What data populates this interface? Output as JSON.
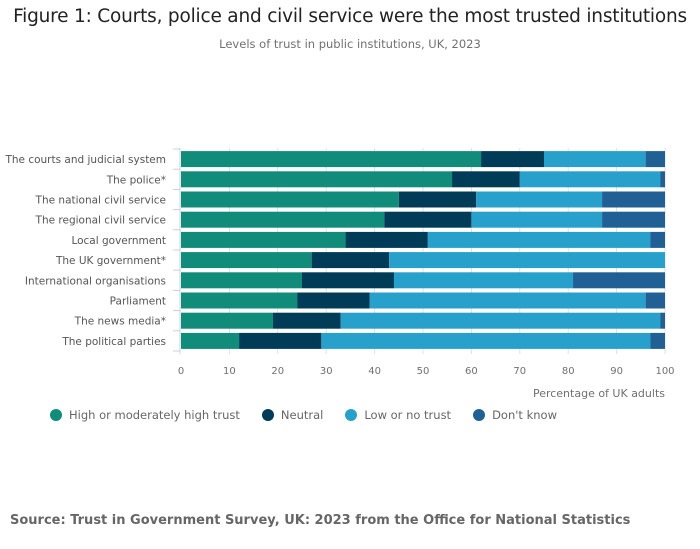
{
  "title": "Figure 1: Courts, police and civil service were the most trusted institutions",
  "subtitle": "Levels of trust in public institutions, UK, 2023",
  "source": "Source: Trust in Government Survey, UK: 2023 from the Office for National Statistics",
  "colors": {
    "high": "#118c7b",
    "neutral": "#003c57",
    "low": "#27a0cc",
    "dont_know": "#206095",
    "grid": "#e0e0e0",
    "axis": "#c8d0e0"
  },
  "legend": [
    {
      "label": "High or moderately high trust",
      "color": "#118c7b"
    },
    {
      "label": "Neutral",
      "color": "#003c57"
    },
    {
      "label": "Low or no trust",
      "color": "#27a0cc"
    },
    {
      "label": "Don't know",
      "color": "#206095"
    }
  ],
  "chart_data": {
    "type": "bar",
    "orientation": "horizontal",
    "stacked": true,
    "title": "Figure 1: Courts, police and civil service were the most trusted institutions",
    "subtitle": "Levels of trust in public institutions, UK, 2023",
    "xlabel": "Percentage of UK adults",
    "ylabel": "",
    "xlim": [
      0,
      100
    ],
    "xticks": [
      0,
      10,
      20,
      30,
      40,
      50,
      60,
      70,
      80,
      90,
      100
    ],
    "grid": true,
    "legend_position": "bottom-left",
    "categories": [
      "The courts and judicial system",
      "The police*",
      "The national civil service",
      "The regional civil service",
      "Local government",
      "The UK government*",
      "International organisations",
      "Parliament",
      "The news media*",
      "The political parties"
    ],
    "series": [
      {
        "name": "High or moderately high trust",
        "color": "#118c7b",
        "values": [
          62,
          56,
          45,
          42,
          34,
          27,
          25,
          24,
          19,
          12
        ]
      },
      {
        "name": "Neutral",
        "color": "#003c57",
        "values": [
          13,
          14,
          16,
          18,
          17,
          16,
          19,
          15,
          14,
          17
        ]
      },
      {
        "name": "Low or no trust",
        "color": "#27a0cc",
        "values": [
          21,
          29,
          26,
          27,
          46,
          57,
          37,
          57,
          66,
          68
        ]
      },
      {
        "name": "Don't know",
        "color": "#206095",
        "values": [
          4,
          1,
          13,
          13,
          3,
          0,
          19,
          4,
          1,
          3
        ]
      }
    ]
  }
}
